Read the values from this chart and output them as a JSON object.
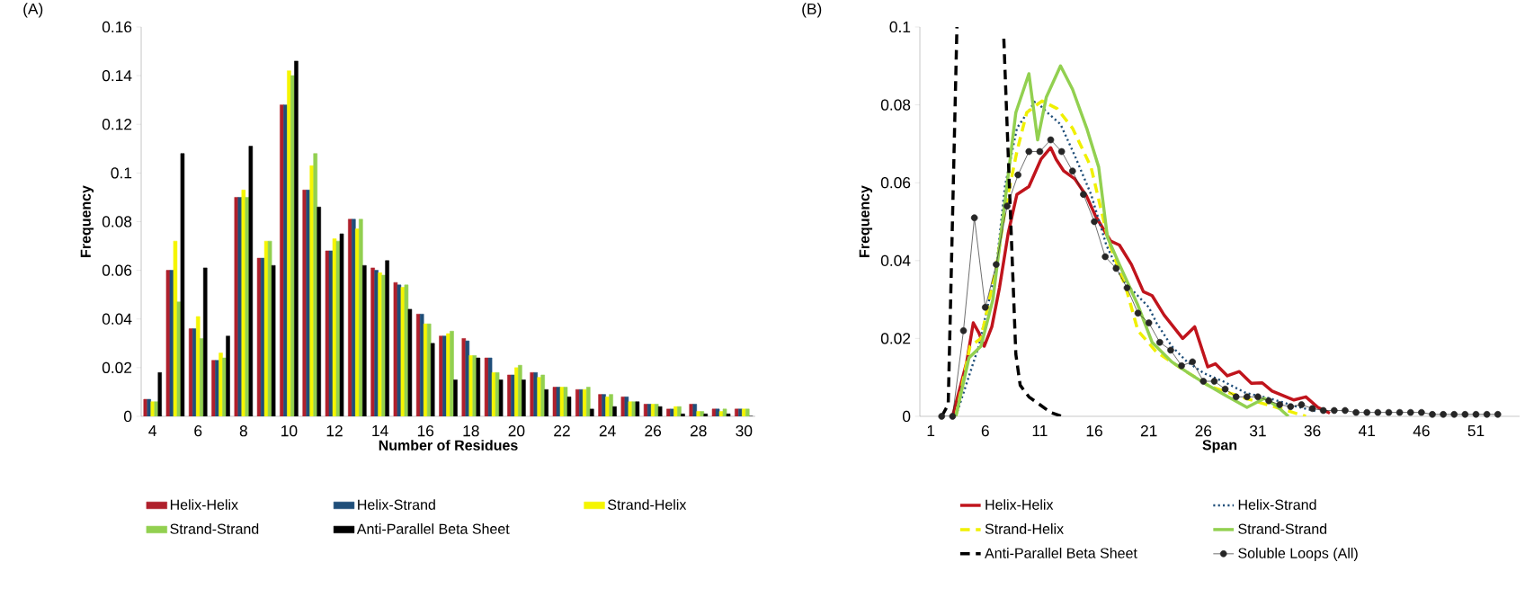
{
  "chart_data": [
    {
      "type": "bar",
      "title": "(A)",
      "xlabel": "Number of Residues",
      "ylabel": "Frequency",
      "categories": [
        "4",
        null,
        "6",
        null,
        "8",
        null,
        "10",
        null,
        "12",
        null,
        "14",
        null,
        "16",
        null,
        "18",
        null,
        "20",
        null,
        "22",
        null,
        "24",
        null,
        "26",
        null,
        "28",
        null,
        "30"
      ],
      "ylim": [
        0,
        0.16
      ],
      "yticks": [
        0,
        0.02,
        0.04,
        0.06,
        0.08,
        0.1,
        0.12,
        0.14,
        0.16
      ],
      "legend": "bottom",
      "series": [
        {
          "name": "Helix-Helix",
          "color": "#b0202c",
          "values": [
            0.007,
            0.06,
            0.036,
            0.023,
            0.09,
            0.065,
            0.128,
            0.093,
            0.068,
            0.081,
            0.061,
            0.055,
            0.042,
            0.033,
            0.032,
            0.024,
            0.017,
            0.018,
            0.012,
            0.011,
            0.009,
            0.008,
            0.005,
            0.003,
            0.005,
            0.003,
            0.003
          ]
        },
        {
          "name": "Helix-Strand",
          "color": "#1f4e79",
          "values": [
            0.007,
            0.06,
            0.036,
            0.023,
            0.09,
            0.065,
            0.128,
            0.093,
            0.068,
            0.081,
            0.06,
            0.054,
            0.042,
            0.033,
            0.031,
            0.024,
            0.017,
            0.018,
            0.012,
            0.011,
            0.009,
            0.008,
            0.005,
            0.003,
            0.005,
            0.003,
            0.003
          ]
        },
        {
          "name": "Strand-Helix",
          "color": "#f5f500",
          "values": [
            0.006,
            0.072,
            0.041,
            0.026,
            0.093,
            0.072,
            0.142,
            0.103,
            0.073,
            0.077,
            0.059,
            0.053,
            0.038,
            0.034,
            0.025,
            0.018,
            0.02,
            0.016,
            0.012,
            0.011,
            0.008,
            0.006,
            0.005,
            0.004,
            0.002,
            0.002,
            0.003
          ]
        },
        {
          "name": "Strand-Strand",
          "color": "#92d050",
          "values": [
            0.006,
            0.047,
            0.032,
            0.024,
            0.09,
            0.072,
            0.14,
            0.108,
            0.072,
            0.081,
            0.058,
            0.054,
            0.038,
            0.035,
            0.025,
            0.018,
            0.021,
            0.017,
            0.012,
            0.012,
            0.009,
            0.006,
            0.005,
            0.004,
            0.002,
            0.003,
            0.003
          ]
        },
        {
          "name": "Anti-Parallel Beta Sheet",
          "color": "#000000",
          "values": [
            0.018,
            0.108,
            0.061,
            0.033,
            0.111,
            0.062,
            0.146,
            0.086,
            0.075,
            0.062,
            0.064,
            0.044,
            0.03,
            0.015,
            0.024,
            0.015,
            0.015,
            0.011,
            0.008,
            0.003,
            0.004,
            0.006,
            0.004,
            0.001,
            0.001,
            0.001,
            0
          ]
        }
      ]
    },
    {
      "type": "line",
      "title": "(B)",
      "xlabel": "Span",
      "ylabel": "Frequency",
      "xlim": [
        0,
        55
      ],
      "xticks": [
        1,
        6,
        11,
        16,
        21,
        26,
        31,
        36,
        41,
        46,
        51
      ],
      "ylim": [
        0,
        0.1
      ],
      "yticks": [
        0,
        0.02,
        0.04,
        0.06,
        0.08,
        0.1
      ],
      "legend": "bottom",
      "series": [
        {
          "name": "Helix-Helix",
          "color": "#c0141c",
          "line_style": "solid",
          "marker": "none",
          "x": [
            3,
            4.3,
            4.9,
            5.4,
            5.9,
            6.6,
            7.3,
            8.1,
            8.9,
            10,
            11.1,
            12,
            12.5,
            13.2,
            14.2,
            15.3,
            16.1,
            17.5,
            18.3,
            19.4,
            20.5,
            21.3,
            22.4,
            24.1,
            25.2,
            26.4,
            27.1,
            28.2,
            29.3,
            30.4,
            31.4,
            32.3,
            34.3,
            35.4,
            36.5,
            37.6
          ],
          "values": [
            0,
            0.014,
            0.024,
            0.0215,
            0.018,
            0.023,
            0.033,
            0.047,
            0.057,
            0.059,
            0.066,
            0.069,
            0.066,
            0.063,
            0.061,
            0.0565,
            0.0515,
            0.045,
            0.044,
            0.039,
            0.032,
            0.031,
            0.026,
            0.02,
            0.023,
            0.0127,
            0.0135,
            0.0104,
            0.0115,
            0.0085,
            0.0086,
            0.0065,
            0.0042,
            0.005,
            0.0023,
            0.0008
          ]
        },
        {
          "name": "Helix-Strand",
          "color": "#1f4e79",
          "line_style": "dotted",
          "marker": "none",
          "x": [
            3.3,
            5.4,
            7,
            7.8,
            8.9,
            10.6,
            11.7,
            12.9,
            14.2,
            15.7,
            17.1,
            18.6,
            21,
            21.7,
            23.1,
            24.5,
            26.1,
            27.8,
            29.9,
            32.1,
            34.3,
            36.5
          ],
          "values": [
            0,
            0.018,
            0.038,
            0.059,
            0.074,
            0.081,
            0.078,
            0.075,
            0.067,
            0.057,
            0.044,
            0.035,
            0.028,
            0.024,
            0.018,
            0.014,
            0.011,
            0.009,
            0.006,
            0.0046,
            0.0027,
            0.0012
          ]
        },
        {
          "name": "Strand-Helix",
          "color": "#f0f000",
          "line_style": "dashed",
          "marker": "none",
          "x": [
            3.3,
            4.6,
            5.6,
            7,
            7.8,
            8.9,
            9.8,
            11.2,
            12.6,
            14,
            15.7,
            17.3,
            18.9,
            20,
            21.7,
            24.7,
            26.6,
            29.9,
            32.7,
            35.4
          ],
          "values": [
            0,
            0.018,
            0.02,
            0.038,
            0.053,
            0.068,
            0.078,
            0.081,
            0.079,
            0.074,
            0.064,
            0.045,
            0.033,
            0.022,
            0.0165,
            0.011,
            0.0077,
            0.0046,
            0.0023,
            0
          ]
        },
        {
          "name": "Strand-Strand",
          "color": "#92d050",
          "line_style": "solid",
          "marker": "none",
          "x": [
            3.3,
            4.5,
            5.6,
            6.7,
            7.8,
            8.8,
            10,
            10.8,
            11.6,
            12.9,
            14,
            15.3,
            16.4,
            17.2,
            18.3,
            20,
            21.3,
            23.1,
            24.7,
            26.4,
            28,
            30,
            31.6,
            32.7,
            33.8
          ],
          "values": [
            0,
            0.015,
            0.018,
            0.03,
            0.055,
            0.078,
            0.088,
            0.071,
            0.082,
            0.09,
            0.084,
            0.074,
            0.064,
            0.046,
            0.039,
            0.0285,
            0.019,
            0.014,
            0.011,
            0.008,
            0.0054,
            0.0023,
            0.0046,
            0.0027,
            0
          ]
        },
        {
          "name": "Anti-Parallel Beta Sheet",
          "color": "#000000",
          "line_style": "dashed",
          "marker": "none",
          "x": [
            2,
            2.6,
            3.4,
            5.5,
            7.7,
            8.2,
            8.8,
            9.2,
            10,
            11,
            12,
            13
          ],
          "values": [
            0,
            0.003,
            0.1,
            null,
            0.097,
            0.06,
            0.016,
            0.008,
            0.005,
            0.003,
            0.001,
            0
          ]
        },
        {
          "name": "Soluble Loops (All)",
          "color": "#262626",
          "line_style": "solid",
          "marker": "circle",
          "x": [
            2,
            3,
            4,
            5,
            6,
            7,
            8,
            9,
            10,
            11,
            12,
            13,
            14,
            15,
            16,
            17,
            18,
            19,
            20,
            21,
            22,
            23,
            24,
            25,
            26,
            27,
            28,
            29,
            30,
            31,
            32,
            33,
            34,
            35,
            36,
            37,
            38,
            39,
            40,
            41,
            42,
            43,
            44,
            45,
            46,
            47,
            48,
            49,
            50,
            51,
            52,
            53
          ],
          "values": [
            0,
            0,
            0.022,
            0.051,
            0.028,
            0.039,
            0.054,
            0.062,
            0.068,
            0.068,
            0.071,
            0.068,
            0.063,
            0.057,
            0.05,
            0.041,
            0.038,
            0.033,
            0.0265,
            0.024,
            0.019,
            0.017,
            0.013,
            0.014,
            0.009,
            0.009,
            0.007,
            0.005,
            0.005,
            0.005,
            0.004,
            0.003,
            0.0025,
            0.003,
            0.002,
            0.0015,
            0.0015,
            0.0015,
            0.001,
            0.001,
            0.001,
            0.001,
            0.001,
            0.001,
            0.001,
            0.0005,
            0.0005,
            0.0005,
            0.0005,
            0.0005,
            0.0005,
            0.0005
          ]
        }
      ]
    }
  ]
}
